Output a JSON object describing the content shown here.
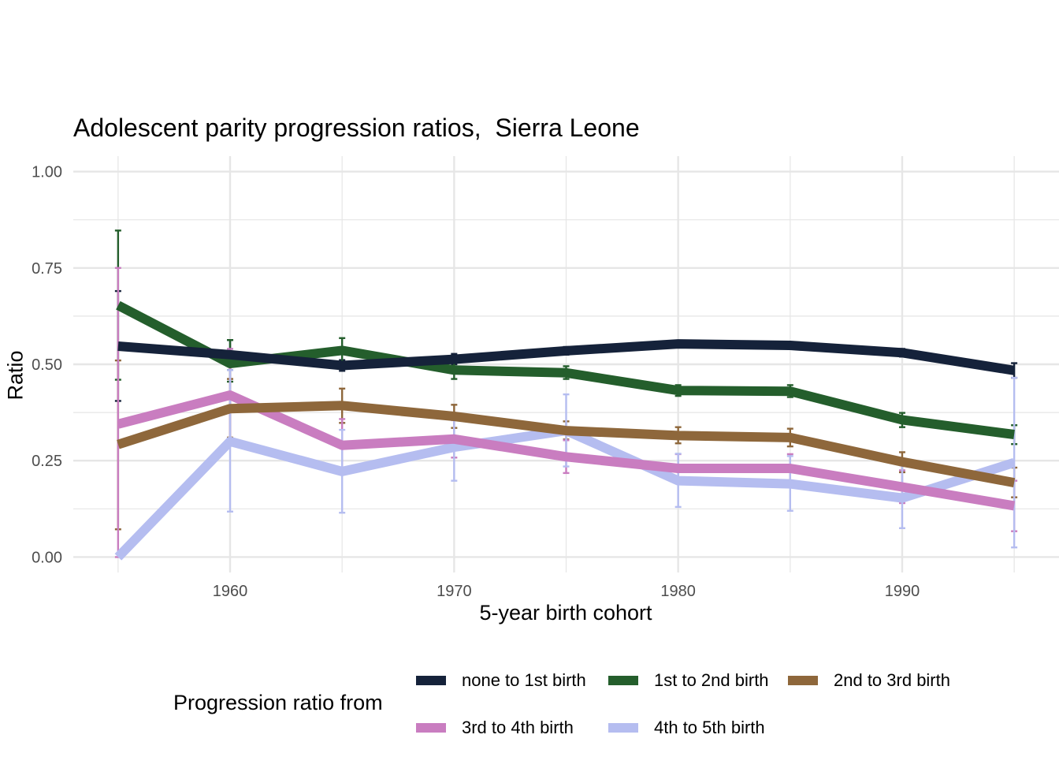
{
  "colors": {
    "none_to_1st": "#15223a",
    "first_to_2nd": "#245e2c",
    "second_to_3rd": "#8e673b",
    "third_to_4th": "#c97dc0",
    "fourth_to_5th": "#b5bdf0",
    "grid": "#e6e6e6",
    "tick_text": "#4d4d4d"
  },
  "chart_data": {
    "type": "line",
    "title": "Adolescent parity progression ratios,  Sierra Leone",
    "xlabel": "5-year birth cohort",
    "ylabel": "Ratio",
    "x": [
      1955,
      1960,
      1965,
      1970,
      1975,
      1980,
      1985,
      1990,
      1995
    ],
    "xlim": [
      1953,
      1997
    ],
    "ylim": [
      -0.04,
      1.04
    ],
    "xticks": [
      1960,
      1970,
      1980,
      1990
    ],
    "xtick_labels": [
      "1960",
      "1970",
      "1980",
      "1990"
    ],
    "yticks": [
      0,
      0.25,
      0.5,
      0.75,
      1.0
    ],
    "ytick_labels": [
      "0.00",
      "0.25",
      "0.50",
      "0.75",
      "1.00"
    ],
    "grid": true,
    "legend_position": "bottom",
    "legend_title": "Progression ratio from",
    "series": [
      {
        "name": "none to 1st birth",
        "color_key": "none_to_1st",
        "values": [
          0.547,
          0.525,
          0.497,
          0.513,
          0.535,
          0.553,
          0.549,
          0.53,
          0.484
        ],
        "lower": [
          0.405,
          0.485,
          0.483,
          0.5,
          0.525,
          0.545,
          0.54,
          0.52,
          0.465
        ],
        "upper": [
          0.69,
          0.563,
          0.511,
          0.527,
          0.545,
          0.561,
          0.558,
          0.54,
          0.503
        ]
      },
      {
        "name": "1st to 2nd birth",
        "color_key": "first_to_2nd",
        "values": [
          0.653,
          0.502,
          0.536,
          0.485,
          0.478,
          0.432,
          0.43,
          0.356,
          0.318
        ],
        "lower": [
          0.46,
          0.455,
          0.506,
          0.462,
          0.462,
          0.418,
          0.415,
          0.337,
          0.293
        ],
        "upper": [
          0.847,
          0.563,
          0.568,
          0.508,
          0.495,
          0.446,
          0.446,
          0.374,
          0.342
        ]
      },
      {
        "name": "2nd to 3rd birth",
        "color_key": "second_to_3rd",
        "values": [
          0.292,
          0.385,
          0.393,
          0.365,
          0.328,
          0.315,
          0.31,
          0.247,
          0.193
        ],
        "lower": [
          0.072,
          0.31,
          0.348,
          0.335,
          0.305,
          0.295,
          0.287,
          0.22,
          0.155
        ],
        "upper": [
          0.51,
          0.462,
          0.437,
          0.395,
          0.352,
          0.337,
          0.333,
          0.272,
          0.232
        ]
      },
      {
        "name": "3rd to 4th birth",
        "color_key": "third_to_4th",
        "values": [
          0.345,
          0.42,
          0.29,
          0.306,
          0.26,
          0.23,
          0.23,
          0.182,
          0.133
        ],
        "lower": [
          0.0,
          0.3,
          0.222,
          0.258,
          0.218,
          0.195,
          0.195,
          0.14,
          0.067
        ],
        "upper": [
          0.75,
          0.54,
          0.358,
          0.355,
          0.303,
          0.267,
          0.267,
          0.225,
          0.198
        ]
      },
      {
        "name": "4th to 5th birth",
        "color_key": "fourth_to_5th",
        "values": [
          0.0,
          0.3,
          0.222,
          0.285,
          0.328,
          0.198,
          0.19,
          0.153,
          0.245
        ],
        "lower": [
          0.0,
          0.118,
          0.115,
          0.198,
          0.235,
          0.13,
          0.12,
          0.075,
          0.025
        ],
        "upper": [
          0.0,
          0.485,
          0.33,
          0.37,
          0.422,
          0.268,
          0.262,
          0.238,
          0.465
        ]
      }
    ]
  }
}
